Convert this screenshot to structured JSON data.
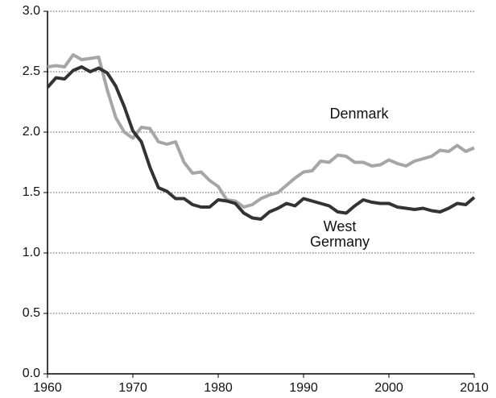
{
  "chart_data": {
    "type": "line",
    "x": [
      1960,
      1961,
      1962,
      1963,
      1964,
      1965,
      1966,
      1967,
      1968,
      1969,
      1970,
      1971,
      1972,
      1973,
      1974,
      1975,
      1976,
      1977,
      1978,
      1979,
      1980,
      1981,
      1982,
      1983,
      1984,
      1985,
      1986,
      1987,
      1988,
      1989,
      1990,
      1991,
      1992,
      1993,
      1994,
      1995,
      1996,
      1997,
      1998,
      1999,
      2000,
      2001,
      2002,
      2003,
      2004,
      2005,
      2006,
      2007,
      2008,
      2009,
      2010
    ],
    "series": [
      {
        "name": "Denmark",
        "color": "#a6a6a6",
        "values": [
          2.54,
          2.55,
          2.54,
          2.64,
          2.6,
          2.61,
          2.62,
          2.35,
          2.12,
          2.0,
          1.95,
          2.04,
          2.03,
          1.92,
          1.9,
          1.92,
          1.75,
          1.66,
          1.67,
          1.6,
          1.55,
          1.44,
          1.43,
          1.38,
          1.4,
          1.45,
          1.48,
          1.5,
          1.56,
          1.62,
          1.67,
          1.68,
          1.76,
          1.75,
          1.81,
          1.8,
          1.75,
          1.75,
          1.72,
          1.73,
          1.77,
          1.74,
          1.72,
          1.76,
          1.78,
          1.8,
          1.85,
          1.84,
          1.89,
          1.84,
          1.87
        ]
      },
      {
        "name": "West Germany",
        "color": "#333333",
        "values": [
          2.37,
          2.45,
          2.44,
          2.51,
          2.54,
          2.5,
          2.53,
          2.49,
          2.38,
          2.21,
          2.01,
          1.92,
          1.71,
          1.54,
          1.51,
          1.45,
          1.45,
          1.4,
          1.38,
          1.38,
          1.44,
          1.43,
          1.41,
          1.33,
          1.29,
          1.28,
          1.34,
          1.37,
          1.41,
          1.39,
          1.45,
          1.43,
          1.41,
          1.39,
          1.34,
          1.33,
          1.39,
          1.44,
          1.42,
          1.41,
          1.41,
          1.38,
          1.37,
          1.36,
          1.37,
          1.35,
          1.34,
          1.37,
          1.41,
          1.4,
          1.46
        ]
      }
    ],
    "xlim": [
      1960,
      2010
    ],
    "xticks": [
      1960,
      1970,
      1980,
      1990,
      2000,
      2010
    ],
    "ylim": [
      0,
      3
    ],
    "yticks": [
      {
        "value": 0,
        "label": "0.0"
      },
      0.5,
      {
        "value": 1,
        "label": "1.0"
      },
      1.5,
      {
        "value": 2,
        "label": "2.0"
      },
      2.5,
      {
        "value": 3,
        "label": "3.0"
      }
    ],
    "grid": true
  }
}
